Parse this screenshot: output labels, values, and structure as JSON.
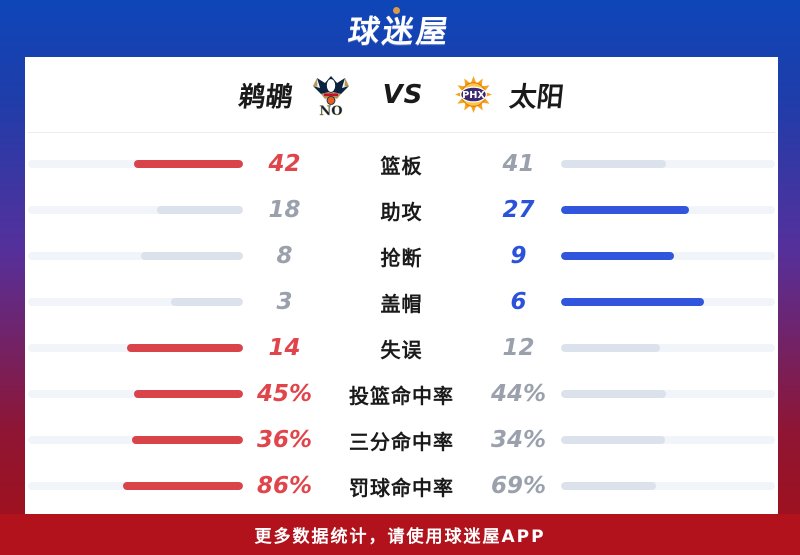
{
  "header": {
    "logo_text": "球迷屋"
  },
  "match": {
    "team_left": {
      "name": "鹈鹕",
      "logo": "pelicans-logo",
      "abbr": "NO",
      "accent": "#d9434a"
    },
    "vs_label": "VS",
    "team_right": {
      "name": "太阳",
      "logo": "suns-logo",
      "abbr": "PHX",
      "accent": "#3156dd"
    }
  },
  "chart_data": {
    "type": "bar",
    "title": "鹈鹕 VS 太阳",
    "categories": [
      "篮板",
      "助攻",
      "抢断",
      "盖帽",
      "失误",
      "投篮命中率",
      "三分命中率",
      "罚球命中率"
    ],
    "series": [
      {
        "name": "鹈鹕",
        "values": [
          42,
          18,
          8,
          3,
          14,
          "45%",
          "36%",
          "86%"
        ]
      },
      {
        "name": "太阳",
        "values": [
          41,
          27,
          9,
          6,
          12,
          "44%",
          "34%",
          "69%"
        ]
      }
    ]
  },
  "stats": {
    "rows": [
      {
        "label": "篮板",
        "left": "42",
        "right": "41",
        "left_pct": 50.6,
        "right_pct": 49.4,
        "winner": "left"
      },
      {
        "label": "助攻",
        "left": "18",
        "right": "27",
        "left_pct": 40.0,
        "right_pct": 60.0,
        "winner": "right"
      },
      {
        "label": "抢断",
        "left": "8",
        "right": "9",
        "left_pct": 47.1,
        "right_pct": 52.9,
        "winner": "right"
      },
      {
        "label": "盖帽",
        "left": "3",
        "right": "6",
        "left_pct": 33.3,
        "right_pct": 66.7,
        "winner": "right"
      },
      {
        "label": "失误",
        "left": "14",
        "right": "12",
        "left_pct": 53.8,
        "right_pct": 46.2,
        "winner": "left"
      },
      {
        "label": "投篮命中率",
        "left": "45%",
        "right": "44%",
        "left_pct": 50.6,
        "right_pct": 49.4,
        "winner": "left"
      },
      {
        "label": "三分命中率",
        "left": "36%",
        "right": "34%",
        "left_pct": 51.4,
        "right_pct": 48.6,
        "winner": "left"
      },
      {
        "label": "罚球命中率",
        "left": "86%",
        "right": "69%",
        "left_pct": 55.5,
        "right_pct": 44.5,
        "winner": "left"
      }
    ]
  },
  "footer": {
    "text": "更多数据统计，请使用球迷屋APP"
  },
  "colors": {
    "bg_top": "#0e46b8",
    "bg_bottom": "#a50f16",
    "footer_bg": "#b1121c",
    "win_left": "#d9434a",
    "win_right": "#3156dd",
    "lose_bar": "#dce2eb",
    "lose_text": "#9aa1ac",
    "track": "#f1f4f8"
  }
}
